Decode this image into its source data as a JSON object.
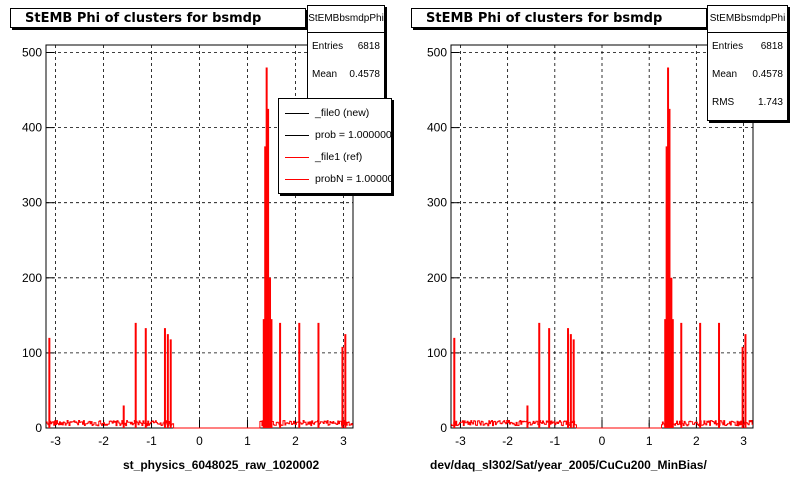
{
  "pads": [
    {
      "title": "StEMB Phi of clusters for bsmdp",
      "stats": {
        "name": "StEMBbsmdpPhi",
        "rows": [
          {
            "label": "Entries",
            "value": "6818"
          },
          {
            "label": "Mean",
            "value": "0.4578"
          }
        ]
      },
      "legend": [
        {
          "label": "_file0 (new)",
          "color": "#000000"
        },
        {
          "label": "prob = 1.000000",
          "color": "#000000"
        },
        {
          "label": "_file1 (ref)",
          "color": "#ff0000"
        },
        {
          "label": "probN = 1.000000",
          "color": "#ff0000"
        }
      ],
      "xlabel": "st_physics_6048025_raw_1020002"
    },
    {
      "title": "StEMB Phi of clusters for bsmdp",
      "stats": {
        "name": "StEMBbsmdpPhi",
        "rows": [
          {
            "label": "Entries",
            "value": "6818"
          },
          {
            "label": "Mean",
            "value": "0.4578"
          },
          {
            "label": "RMS",
            "value": "1.743"
          }
        ]
      },
      "legend": [],
      "xlabel": "dev/daq_sl302/Sat/year_2005/CuCu200_MinBias/"
    }
  ],
  "chart_data": {
    "type": "bar",
    "title": "StEMB Phi of clusters for bsmdp",
    "xlim": [
      -3.2,
      3.2
    ],
    "ylim": [
      0,
      510
    ],
    "x_ticks": [
      "-3",
      "-2",
      "-1",
      "0",
      "1",
      "2",
      "3"
    ],
    "y_ticks": [
      "0",
      "100",
      "200",
      "300",
      "400",
      "500"
    ],
    "grid": true,
    "series_color": "#ff0000",
    "baseline_noise": {
      "x_from": -3.2,
      "x_to": 3.2,
      "min": 3,
      "max": 10,
      "gap": [
        -0.55,
        1.25
      ]
    },
    "spikes": [
      {
        "x": -3.13,
        "y": 120
      },
      {
        "x": -1.58,
        "y": 30
      },
      {
        "x": -1.33,
        "y": 140
      },
      {
        "x": -1.12,
        "y": 133
      },
      {
        "x": -0.72,
        "y": 133
      },
      {
        "x": -0.66,
        "y": 125
      },
      {
        "x": -0.6,
        "y": 118
      },
      {
        "x": 1.34,
        "y": 145
      },
      {
        "x": 1.37,
        "y": 375
      },
      {
        "x": 1.4,
        "y": 480
      },
      {
        "x": 1.43,
        "y": 425
      },
      {
        "x": 1.47,
        "y": 200
      },
      {
        "x": 1.5,
        "y": 145
      },
      {
        "x": 1.68,
        "y": 140
      },
      {
        "x": 2.08,
        "y": 140
      },
      {
        "x": 2.48,
        "y": 140
      },
      {
        "x": 2.98,
        "y": 108
      },
      {
        "x": 3.04,
        "y": 125
      }
    ]
  }
}
